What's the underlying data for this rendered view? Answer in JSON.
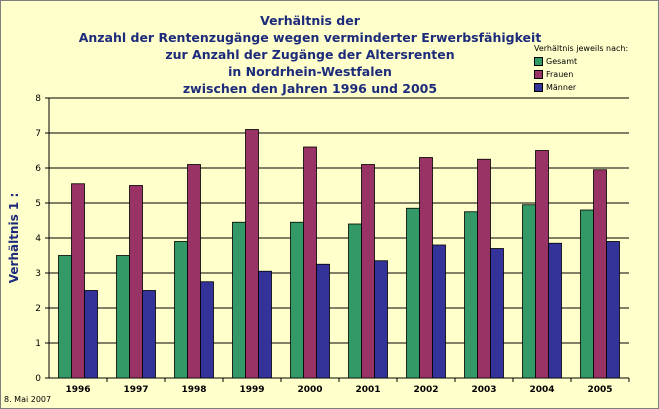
{
  "chart_data": {
    "type": "bar",
    "title_lines": [
      "Verhältnis der",
      "Anzahl der Rentenzugänge wegen verminderter Erwerbsfähigkeit",
      "zur Anzahl der Zugänge der Altersrenten",
      "in Nordrhein-Westfalen",
      "zwischen den Jahren 1996 und 2005"
    ],
    "ylabel": "Verhältnis 1 :",
    "xlabel": "",
    "ylim": [
      0,
      8
    ],
    "yticks": [
      "0",
      "1",
      "2",
      "3",
      "4",
      "5",
      "6",
      "7",
      "8"
    ],
    "grid": true,
    "legend_title": "Verhältnis jeweils nach:",
    "legend_position": "top-right",
    "categories": [
      "1996",
      "1997",
      "1998",
      "1999",
      "2000",
      "2001",
      "2002",
      "2003",
      "2004",
      "2005"
    ],
    "series": [
      {
        "name": "Gesamt",
        "color": "#339966",
        "values": [
          3.5,
          3.5,
          3.9,
          4.45,
          4.45,
          4.4,
          4.85,
          4.75,
          4.95,
          4.8
        ]
      },
      {
        "name": "Frauen",
        "color": "#993366",
        "values": [
          5.55,
          5.5,
          6.1,
          7.1,
          6.6,
          6.1,
          6.3,
          6.25,
          6.5,
          5.95
        ]
      },
      {
        "name": "Männer",
        "color": "#333399",
        "values": [
          2.5,
          2.5,
          2.75,
          3.05,
          3.25,
          3.35,
          3.8,
          3.7,
          3.85,
          3.9
        ]
      }
    ]
  },
  "footer": {
    "date": "8. Mai 2007"
  }
}
